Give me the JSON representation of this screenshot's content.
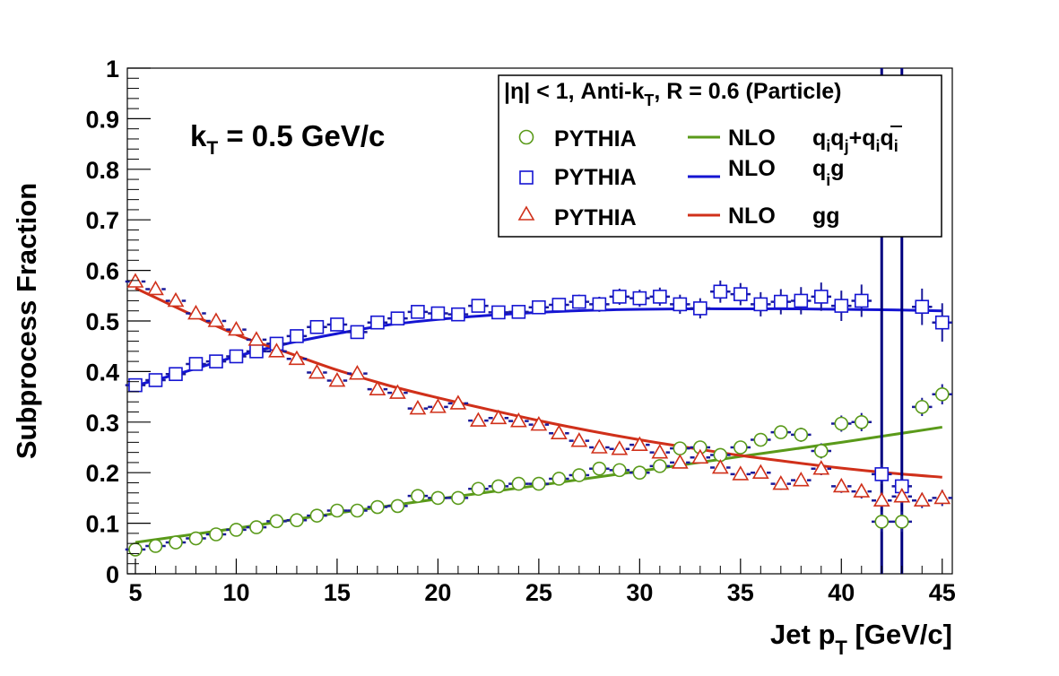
{
  "chart_data": {
    "type": "scatter",
    "title": "",
    "xlabel": "Jet p",
    "xlabel_sub": "T",
    "xlabel_unit": " [GeV/c]",
    "ylabel": "Subprocess Fraction",
    "xlim": [
      4.6,
      45.5
    ],
    "ylim": [
      0,
      1
    ],
    "x_ticks": [
      5,
      10,
      15,
      20,
      25,
      30,
      35,
      40,
      45
    ],
    "y_ticks": [
      0,
      0.1,
      0.2,
      0.3,
      0.4,
      0.5,
      0.6,
      0.7,
      0.8,
      0.9,
      1
    ],
    "y_tick_labels": [
      "0",
      "0.1",
      "0.2",
      "0.3",
      "0.4",
      "0.5",
      "0.6",
      "0.7",
      "0.8",
      "0.9",
      "1"
    ],
    "annotation": {
      "main": "k",
      "sub": "T",
      "rest": " = 0.5 GeV/c"
    },
    "legend": {
      "placement": "top-right",
      "header": {
        "pre": "|η| < 1, Anti-k",
        "sub": "T",
        "post": ", R = 0.6 (Particle)"
      },
      "marker_labels": [
        "PYTHIA",
        "PYTHIA",
        "PYTHIA"
      ],
      "line_labels": [
        "NLO",
        "NLO",
        "NLO"
      ],
      "process_labels": [
        "q_i q_j + q_i q̄_i",
        "q_i g",
        "gg"
      ]
    },
    "colors": {
      "green": "#5a9a1a",
      "blue": "#1414d2",
      "red": "#d0301a",
      "dark_blue": "#000080"
    },
    "series": [
      {
        "marker": "circle",
        "color": "green",
        "x": [
          5,
          6,
          7,
          8,
          9,
          10,
          11,
          12,
          13,
          14,
          15,
          16,
          17,
          18,
          19,
          20,
          21,
          22,
          23,
          24,
          25,
          26,
          27,
          28,
          29,
          30,
          31,
          32,
          33,
          34,
          35,
          36,
          37,
          38,
          39,
          40,
          41,
          42,
          43,
          44,
          45
        ],
        "values": [
          0.048,
          0.055,
          0.062,
          0.07,
          0.078,
          0.087,
          0.092,
          0.104,
          0.106,
          0.115,
          0.125,
          0.125,
          0.132,
          0.134,
          0.154,
          0.15,
          0.15,
          0.168,
          0.173,
          0.178,
          0.178,
          0.188,
          0.195,
          0.208,
          0.205,
          0.2,
          0.213,
          0.248,
          0.25,
          0.235,
          0.25,
          0.265,
          0.28,
          0.275,
          0.243,
          0.297,
          0.3,
          0.103,
          0.103,
          0.33,
          0.355
        ],
        "errors": [
          0.004,
          0.004,
          0.004,
          0.004,
          0.004,
          0.004,
          0.004,
          0.004,
          0.004,
          0.004,
          0.004,
          0.004,
          0.004,
          0.005,
          0.005,
          0.005,
          0.005,
          0.006,
          0.006,
          0.006,
          0.006,
          0.007,
          0.007,
          0.008,
          0.008,
          0.008,
          0.008,
          0.01,
          0.01,
          0.01,
          0.01,
          0.012,
          0.012,
          0.014,
          0.015,
          0.016,
          0.018,
          0.02,
          0.02,
          0.018,
          0.02
        ]
      },
      {
        "marker": "square",
        "color": "blue",
        "x": [
          5,
          6,
          7,
          8,
          9,
          10,
          11,
          12,
          13,
          14,
          15,
          16,
          17,
          18,
          19,
          20,
          21,
          22,
          23,
          24,
          25,
          26,
          27,
          28,
          29,
          30,
          31,
          32,
          33,
          34,
          35,
          36,
          37,
          38,
          39,
          40,
          41,
          42,
          43,
          44,
          45
        ],
        "values": [
          0.373,
          0.383,
          0.395,
          0.415,
          0.42,
          0.43,
          0.44,
          0.455,
          0.47,
          0.488,
          0.493,
          0.478,
          0.497,
          0.505,
          0.518,
          0.515,
          0.513,
          0.53,
          0.517,
          0.518,
          0.527,
          0.532,
          0.538,
          0.533,
          0.548,
          0.545,
          0.548,
          0.533,
          0.525,
          0.558,
          0.553,
          0.533,
          0.538,
          0.54,
          0.548,
          0.53,
          0.54,
          0.197,
          0.173,
          0.528,
          0.497
        ],
        "errors": [
          0.005,
          0.005,
          0.005,
          0.005,
          0.005,
          0.005,
          0.006,
          0.006,
          0.006,
          0.007,
          0.007,
          0.007,
          0.008,
          0.008,
          0.009,
          0.009,
          0.01,
          0.011,
          0.011,
          0.012,
          0.012,
          0.013,
          0.014,
          0.015,
          0.016,
          0.017,
          0.018,
          0.019,
          0.02,
          0.022,
          0.022,
          0.024,
          0.025,
          0.027,
          0.028,
          0.03,
          0.032,
          0.02,
          0.02,
          0.036,
          0.038
        ]
      },
      {
        "marker": "triangle",
        "color": "red",
        "x": [
          5,
          6,
          7,
          8,
          9,
          10,
          11,
          12,
          13,
          14,
          15,
          16,
          17,
          18,
          19,
          20,
          21,
          22,
          23,
          24,
          25,
          26,
          27,
          28,
          29,
          30,
          31,
          32,
          33,
          34,
          35,
          36,
          37,
          38,
          39,
          40,
          41,
          42,
          43,
          44,
          45
        ],
        "values": [
          0.578,
          0.563,
          0.54,
          0.515,
          0.5,
          0.483,
          0.463,
          0.44,
          0.425,
          0.398,
          0.382,
          0.396,
          0.365,
          0.358,
          0.327,
          0.33,
          0.337,
          0.303,
          0.308,
          0.302,
          0.295,
          0.278,
          0.263,
          0.25,
          0.247,
          0.255,
          0.24,
          0.22,
          0.23,
          0.21,
          0.197,
          0.2,
          0.178,
          0.185,
          0.208,
          0.173,
          0.163,
          0.145,
          0.153,
          0.145,
          0.15
        ],
        "errors": [
          0.005,
          0.005,
          0.005,
          0.005,
          0.005,
          0.005,
          0.005,
          0.005,
          0.005,
          0.006,
          0.006,
          0.006,
          0.006,
          0.006,
          0.007,
          0.007,
          0.007,
          0.007,
          0.007,
          0.007,
          0.008,
          0.008,
          0.008,
          0.009,
          0.009,
          0.009,
          0.01,
          0.01,
          0.01,
          0.011,
          0.011,
          0.011,
          0.012,
          0.012,
          0.013,
          0.013,
          0.014,
          0.014,
          0.015,
          0.015,
          0.016
        ]
      }
    ],
    "curves": [
      {
        "name": "NLO",
        "color": "green",
        "x": [
          5,
          10,
          15,
          20,
          25,
          30,
          35,
          40,
          45
        ],
        "values": [
          0.062,
          0.09,
          0.12,
          0.148,
          0.175,
          0.203,
          0.232,
          0.26,
          0.29
        ]
      },
      {
        "name": "NLO",
        "color": "blue",
        "x": [
          5,
          7.5,
          10,
          12.5,
          15,
          17.5,
          20,
          22.5,
          25,
          27.5,
          30,
          32.5,
          35,
          37.5,
          40,
          42.5,
          45
        ],
        "values": [
          0.372,
          0.4,
          0.43,
          0.455,
          0.475,
          0.492,
          0.503,
          0.511,
          0.517,
          0.521,
          0.523,
          0.524,
          0.524,
          0.524,
          0.523,
          0.522,
          0.52
        ]
      },
      {
        "name": "NLO",
        "color": "red",
        "x": [
          5,
          7.5,
          10,
          12.5,
          15,
          17.5,
          20,
          22.5,
          25,
          27.5,
          30,
          32.5,
          35,
          37.5,
          40,
          42.5,
          45
        ],
        "values": [
          0.565,
          0.518,
          0.473,
          0.438,
          0.403,
          0.373,
          0.348,
          0.325,
          0.303,
          0.283,
          0.265,
          0.249,
          0.234,
          0.221,
          0.209,
          0.199,
          0.191
        ]
      }
    ],
    "outlier_lines": {
      "color": "dark_blue",
      "x": [
        42,
        43
      ]
    }
  }
}
